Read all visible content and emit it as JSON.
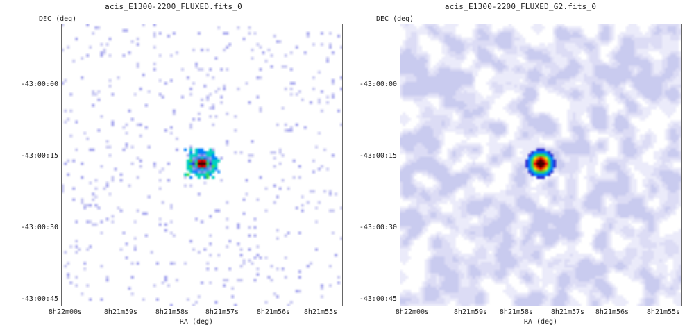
{
  "panels": [
    {
      "title": "acis_E1300-2200_FLUXED.fits_0",
      "ylabel": "DEC (deg)",
      "xlabel": "RA (deg)",
      "yticks": [
        "-43:00:00",
        "-43:00:15",
        "-43:00:30",
        "-43:00:45"
      ],
      "xticks": [
        "8h22m00s",
        "8h21m59s",
        "8h21m58s",
        "8h21m57s",
        "8h21m56s",
        "8h21m55s"
      ],
      "style": "sparse-counts"
    },
    {
      "title": "acis_E1300-2200_FLUXED_G2.fits_0",
      "ylabel": "DEC (deg)",
      "xlabel": "RA (deg)",
      "yticks": [
        "-43:00:00",
        "-43:00:15",
        "-43:00:30",
        "-43:00:45"
      ],
      "xticks": [
        "8h22m00s",
        "8h21m59s",
        "8h21m58s",
        "8h21m57s",
        "8h21m56s",
        "8h21m55s"
      ],
      "style": "gaussian-smoothed"
    }
  ],
  "colormap": [
    "#ffffff",
    "#e8e8f8",
    "#c8c8f2",
    "#a8a8ee",
    "#7878e6",
    "#2f2fd0",
    "#0080ff",
    "#00d0c0",
    "#40e040",
    "#f0f000",
    "#ff8000",
    "#ff0000",
    "#b00000",
    "#400000"
  ]
}
